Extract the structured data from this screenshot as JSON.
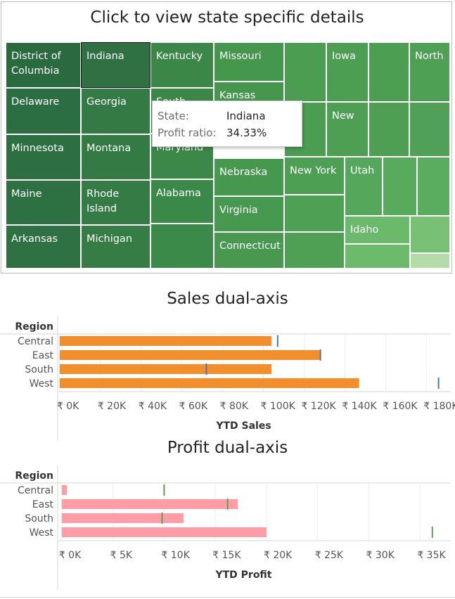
{
  "treemap": {
    "title": "Click to view state specific details",
    "cells": [
      {
        "label": "District of Columbia",
        "color": "#296b3f",
        "selected": false
      },
      {
        "label": "Indiana",
        "color": "#2f7142",
        "selected": true
      },
      {
        "label": "Kentucky",
        "color": "#3a8747",
        "selected": false
      },
      {
        "label": "Missouri",
        "color": "#45974d",
        "selected": false
      },
      {
        "label": "",
        "color": "#4b9d52",
        "selected": false
      },
      {
        "label": "Iowa",
        "color": "#4c9e53",
        "selected": false
      },
      {
        "label": "",
        "color": "#4c9e53",
        "selected": false
      },
      {
        "label": "North",
        "color": "#4ea055",
        "selected": false
      },
      {
        "label": "Delaware",
        "color": "#2b6e41",
        "selected": false
      },
      {
        "label": "Georgia",
        "color": "#337a44",
        "selected": false
      },
      {
        "label": "South",
        "color": "#3a8747",
        "selected": false
      },
      {
        "label": "Kansas",
        "color": "#45974d",
        "selected": false
      },
      {
        "label": "",
        "color": "#4b9d52",
        "selected": false
      },
      {
        "label": "New",
        "color": "#4e9f54",
        "selected": false
      },
      {
        "label": "",
        "color": "#4e9f54",
        "selected": false
      },
      {
        "label": "",
        "color": "#50a157",
        "selected": false
      },
      {
        "label": "Minnesota",
        "color": "#2c6f41",
        "selected": false
      },
      {
        "label": "Montana",
        "color": "#337a44",
        "selected": false
      },
      {
        "label": "Maryland",
        "color": "#3b8848",
        "selected": false
      },
      {
        "label": "Nebraska",
        "color": "#46984e",
        "selected": false
      },
      {
        "label": "New York",
        "color": "#4d9f54",
        "selected": false
      },
      {
        "label": "Utah",
        "color": "#55a85b",
        "selected": false
      },
      {
        "label": "",
        "color": "#58ab5d",
        "selected": false
      },
      {
        "label": "",
        "color": "#5aad5f",
        "selected": false
      },
      {
        "label": "Maine",
        "color": "#2d7142",
        "selected": false
      },
      {
        "label": "Rhode Island",
        "color": "#347b45",
        "selected": false
      },
      {
        "label": "Alabama",
        "color": "#3b8948",
        "selected": false
      },
      {
        "label": "Virginia",
        "color": "#47994f",
        "selected": false
      },
      {
        "label": "",
        "color": "#4ea055",
        "selected": false
      },
      {
        "label": "Idaho",
        "color": "#6bb96b",
        "selected": false
      },
      {
        "label": "",
        "color": "#77c074",
        "selected": false
      },
      {
        "label": "Arkansas",
        "color": "#2e7243",
        "selected": false
      },
      {
        "label": "Michigan",
        "color": "#357c45",
        "selected": false
      },
      {
        "label": "",
        "color": "#3c8a49",
        "selected": false
      },
      {
        "label": "Connecticut",
        "color": "#48994f",
        "selected": false
      },
      {
        "label": "",
        "color": "#4fa055",
        "selected": false
      },
      {
        "label": "",
        "color": "#6cba6c",
        "selected": false
      },
      {
        "label": "",
        "color": "#b4dca9",
        "selected": false
      }
    ],
    "label_colors": {
      "dark": "#ffffff",
      "light": "#222222"
    }
  },
  "tooltip": {
    "state_key": "State:",
    "state_value": "Indiana",
    "profit_key": "Profit ratio:",
    "profit_value": "34.33%"
  },
  "sales": {
    "title": "Sales dual-axis",
    "header": "Region"
  },
  "profit": {
    "title": "Profit dual-axis",
    "header": "Region"
  },
  "chart_data": [
    {
      "type": "bar",
      "title": "Sales dual-axis",
      "row_header": "Region",
      "categories": [
        "Central",
        "East",
        "South",
        "West"
      ],
      "series": [
        {
          "values": [
            104000,
            128000,
            104000,
            147000
          ]
        },
        {
          "values": [
            107000,
            128000,
            72000,
            186000
          ]
        }
      ],
      "bar_color": "#f28e2b",
      "marker_color": "#4e79a7",
      "xlabel": "YTD Sales",
      "xlim": [
        -1000,
        192000
      ],
      "ticks": [
        0,
        20000,
        40000,
        60000,
        80000,
        100000,
        120000,
        140000,
        160000,
        180000
      ],
      "tick_labels": [
        "₹ 0K",
        "₹ 20K",
        "₹ 40K",
        "₹ 60K",
        "₹ 80K",
        "₹ 100K",
        "₹ 120K",
        "₹ 140K",
        "₹ 160K",
        "₹ 180K"
      ],
      "grid": true
    },
    {
      "type": "bar",
      "title": "Profit dual-axis",
      "row_header": "Region",
      "categories": [
        "Central",
        "East",
        "South",
        "West"
      ],
      "series": [
        {
          "values": [
            500,
            17200,
            11900,
            20000
          ]
        },
        {
          "values": [
            10000,
            16200,
            9800,
            36200
          ]
        }
      ],
      "bar_color": "#ff9da7",
      "marker_color": "#59a14f",
      "xlabel": "YTD Profit",
      "xlim": [
        -400,
        38000
      ],
      "ticks": [
        0,
        5000,
        10000,
        15000,
        20000,
        25000,
        30000,
        35000
      ],
      "tick_labels": [
        "₹ 0K",
        "₹ 5K",
        "₹ 10K",
        "₹ 15K",
        "₹ 20K",
        "₹ 25K",
        "₹ 30K",
        "₹ 35K"
      ],
      "grid": true
    }
  ]
}
